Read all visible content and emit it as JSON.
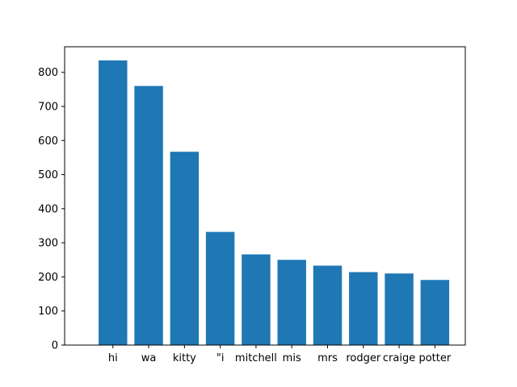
{
  "chart_data": {
    "type": "bar",
    "categories": [
      "hi",
      "wa",
      "kitty",
      "\"i",
      "mitchell",
      "mis",
      "mrs",
      "rodger",
      "craige",
      "potter"
    ],
    "values": [
      835,
      760,
      567,
      332,
      266,
      250,
      233,
      214,
      210,
      191
    ],
    "ylim": [
      0,
      875
    ],
    "yticks": [
      0,
      100,
      200,
      300,
      400,
      500,
      600,
      700,
      800
    ],
    "bar_color": "#1f77b4",
    "grid": false,
    "legend": "none"
  }
}
